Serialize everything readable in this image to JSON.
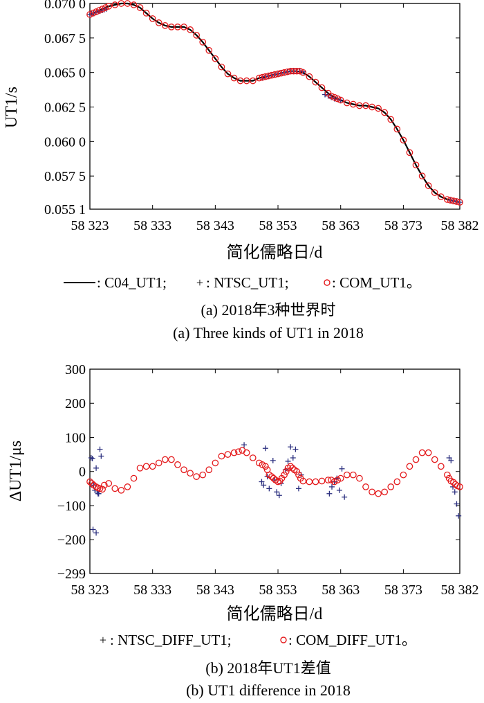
{
  "chart_data": [
    {
      "type": "line",
      "xlabel": "简化儒略日/d",
      "ylabel": "UT1/s",
      "xlim": [
        58323,
        58382
      ],
      "ylim": [
        0.0551,
        0.07
      ],
      "xticks": [
        58323,
        58333,
        58343,
        58353,
        58363,
        58373,
        58382
      ],
      "xtick_labels": [
        "58 323",
        "58 333",
        "58 343",
        "58 353",
        "58 363",
        "58 373",
        "58 382"
      ],
      "yticks": [
        0.0551,
        0.0575,
        0.06,
        0.0625,
        0.065,
        0.0675,
        0.07
      ],
      "ytick_labels": [
        "0.055 1",
        "0.057 5",
        "0.060 0",
        "0.062 5",
        "0.065 0",
        "0.067 5",
        "0.070 0"
      ],
      "legend_text": ": C04_UT1; ",
      "legend_text2": ": NTSC_UT1; ",
      "legend_text3": ": COM_UT1。",
      "caption_cn": "(a) 2018年3种世界时",
      "caption_en": "(a) Three kinds of UT1 in 2018",
      "series": [
        {
          "name": "C04_UT1",
          "style": "line",
          "color": "#000000",
          "x": [
            58323,
            58324,
            58325,
            58326,
            58327,
            58328,
            58329,
            58330,
            58331,
            58332,
            58333,
            58334,
            58335,
            58336,
            58337,
            58338,
            58339,
            58340,
            58341,
            58342,
            58343,
            58344,
            58345,
            58346,
            58347,
            58348,
            58349,
            58350,
            58351,
            58352,
            58353,
            58354,
            58355,
            58356,
            58357,
            58358,
            58359,
            58360,
            58361,
            58362,
            58363,
            58364,
            58365,
            58366,
            58367,
            58368,
            58369,
            58370,
            58371,
            58372,
            58373,
            58374,
            58375,
            58376,
            58377,
            58378,
            58379,
            58380,
            58381,
            58382
          ],
          "y": [
            0.0692,
            0.0694,
            0.0696,
            0.0698,
            0.0699,
            0.07,
            0.07,
            0.0699,
            0.0697,
            0.0693,
            0.0689,
            0.0686,
            0.0684,
            0.0683,
            0.0683,
            0.0683,
            0.0681,
            0.0677,
            0.0672,
            0.0666,
            0.066,
            0.0654,
            0.0649,
            0.0646,
            0.0644,
            0.0644,
            0.0644,
            0.0646,
            0.0647,
            0.0648,
            0.0649,
            0.065,
            0.0651,
            0.0651,
            0.065,
            0.0647,
            0.0643,
            0.0639,
            0.0635,
            0.0632,
            0.063,
            0.0628,
            0.0627,
            0.0626,
            0.0626,
            0.0625,
            0.0624,
            0.0621,
            0.0616,
            0.0609,
            0.0601,
            0.0592,
            0.0583,
            0.0575,
            0.0568,
            0.0563,
            0.056,
            0.0558,
            0.0557,
            0.0556
          ]
        },
        {
          "name": "NTSC_UT1",
          "style": "plus",
          "color": "#2b2f7f",
          "x": [
            58323,
            58323.3,
            58323.6,
            58324,
            58324.3,
            58324.6,
            58325,
            58325.3,
            58325.6,
            58350.5,
            58351,
            58351.5,
            58352,
            58352.5,
            58353,
            58353.5,
            58354,
            58354.5,
            58355,
            58355.5,
            58356,
            58356.5,
            58357,
            58360.5,
            58361,
            58361.5,
            58362,
            58362.5,
            58363,
            58380.5,
            58381,
            58381.5,
            58382
          ],
          "y": [
            0.0692,
            0.06925,
            0.0693,
            0.06935,
            0.0694,
            0.06945,
            0.0695,
            0.06955,
            0.0696,
            0.0646,
            0.0647,
            0.06475,
            0.0648,
            0.06485,
            0.0649,
            0.06495,
            0.065,
            0.06505,
            0.0651,
            0.0651,
            0.0651,
            0.0651,
            0.06505,
            0.0634,
            0.0633,
            0.0632,
            0.0631,
            0.06305,
            0.063,
            0.05575,
            0.0557,
            0.05565,
            0.0556
          ]
        },
        {
          "name": "COM_UT1",
          "style": "circle",
          "color": "#e41a1c",
          "x": [
            58323,
            58323.5,
            58324,
            58324.5,
            58325,
            58325.5,
            58326,
            58327,
            58328,
            58329,
            58330,
            58331,
            58332,
            58333,
            58334,
            58335,
            58336,
            58337,
            58338,
            58339,
            58340,
            58341,
            58342,
            58343,
            58344,
            58345,
            58346,
            58347,
            58348,
            58349,
            58350,
            58350.5,
            58351,
            58351.5,
            58352,
            58352.5,
            58353,
            58353.5,
            58354,
            58354.5,
            58355,
            58355.5,
            58356,
            58356.5,
            58357,
            58358,
            58359,
            58360,
            58361,
            58361.5,
            58362,
            58362.5,
            58363,
            58364,
            58365,
            58366,
            58367,
            58368,
            58369,
            58370,
            58371,
            58372,
            58373,
            58374,
            58375,
            58376,
            58377,
            58378,
            58379,
            58380,
            58380.5,
            58381,
            58381.5,
            58382
          ],
          "y": [
            0.0692,
            0.0693,
            0.0694,
            0.0695,
            0.0696,
            0.0697,
            0.0698,
            0.0699,
            0.07,
            0.07,
            0.0699,
            0.0697,
            0.0693,
            0.0689,
            0.0686,
            0.0684,
            0.0683,
            0.0683,
            0.0683,
            0.0681,
            0.0677,
            0.0672,
            0.0666,
            0.066,
            0.0654,
            0.0649,
            0.0646,
            0.0644,
            0.0644,
            0.0644,
            0.0646,
            0.06465,
            0.0647,
            0.06475,
            0.0648,
            0.06485,
            0.0649,
            0.06495,
            0.065,
            0.06505,
            0.0651,
            0.0651,
            0.0651,
            0.0651,
            0.065,
            0.0647,
            0.0643,
            0.0639,
            0.0635,
            0.0633,
            0.0632,
            0.0631,
            0.063,
            0.0628,
            0.0627,
            0.0626,
            0.0626,
            0.0625,
            0.0624,
            0.0621,
            0.0616,
            0.0609,
            0.0601,
            0.0592,
            0.0583,
            0.0575,
            0.0568,
            0.0563,
            0.056,
            0.0558,
            0.05575,
            0.0557,
            0.05565,
            0.0556
          ]
        }
      ]
    },
    {
      "type": "scatter",
      "xlabel": "简化儒略日/d",
      "ylabel": "ΔUT1/μs",
      "xlim": [
        58323,
        58382
      ],
      "ylim": [
        -299,
        300
      ],
      "xticks": [
        58323,
        58333,
        58343,
        58353,
        58363,
        58373,
        58382
      ],
      "xtick_labels": [
        "58 323",
        "58 333",
        "58 343",
        "58 353",
        "58 363",
        "58 373",
        "58 382"
      ],
      "yticks": [
        -299,
        -200,
        -100,
        0,
        100,
        200,
        300
      ],
      "ytick_labels": [
        "−299",
        "−200",
        "−100",
        "0",
        "100",
        "200",
        "300"
      ],
      "legend_text": ": NTSC_DIFF_UT1; ",
      "legend_text2": ": COM_DIFF_UT1。",
      "caption_cn": "(b) 2018年UT1差值",
      "caption_en": "(b) UT1 difference in 2018",
      "series": [
        {
          "name": "NTSC_DIFF_UT1",
          "style": "plus",
          "color": "#2b2f7f",
          "x": [
            58323.2,
            58323.4,
            58323.6,
            58323.8,
            58324,
            58324.2,
            58324.4,
            58324.6,
            58324.8,
            58323.5,
            58324,
            58324.3,
            58347.6,
            58350.4,
            58350.7,
            58351,
            58351.3,
            58351.6,
            58352.2,
            58352.5,
            58352.8,
            58353.2,
            58353.5,
            58354.2,
            58354.6,
            58355,
            58355.4,
            58355.8,
            58356.3,
            58356.7,
            58361.2,
            58361.6,
            58362,
            58362.4,
            58362.8,
            58363.2,
            58363.6,
            58380.3,
            58380.6,
            58380.9,
            58381.2,
            58381.5,
            58381.8
          ],
          "y": [
            40,
            38,
            -40,
            -55,
            10,
            -60,
            -65,
            65,
            45,
            -170,
            -180,
            -65,
            78,
            -30,
            -40,
            68,
            -15,
            -50,
            32,
            -25,
            -60,
            -70,
            -35,
            5,
            30,
            72,
            40,
            65,
            -50,
            -10,
            -65,
            -45,
            -30,
            -20,
            -55,
            8,
            -75,
            40,
            32,
            -45,
            -60,
            -95,
            -130
          ]
        },
        {
          "name": "COM_DIFF_UT1",
          "style": "circle",
          "color": "#e41a1c",
          "x": [
            58323,
            58323.3,
            58323.6,
            58324,
            58324.3,
            58324.6,
            58325,
            58325.3,
            58326,
            58327,
            58328,
            58329,
            58330,
            58331,
            58332,
            58333,
            58334,
            58335,
            58336,
            58337,
            58338,
            58339,
            58340,
            58341,
            58342,
            58343,
            58344,
            58345,
            58346,
            58346.7,
            58347.3,
            58348,
            58349,
            58350,
            58350.5,
            58351,
            58351.3,
            58351.6,
            58352,
            58352.3,
            58352.6,
            58353,
            58353.3,
            58353.6,
            58354,
            58354.3,
            58354.6,
            58355,
            58355.3,
            58355.6,
            58356,
            58356.3,
            58356.6,
            58357,
            58358,
            58359,
            58360,
            58361,
            58361.5,
            58362,
            58362.5,
            58363,
            58364,
            58365,
            58366,
            58367,
            58368,
            58369,
            58370,
            58371,
            58372,
            58373,
            58374,
            58375,
            58376,
            58377,
            58378,
            58379,
            58380,
            58380.3,
            58380.6,
            58381,
            58381.3,
            58381.6,
            58382
          ],
          "y": [
            -30,
            -35,
            -40,
            -45,
            -48,
            -50,
            -52,
            -40,
            -35,
            -50,
            -55,
            -45,
            -20,
            10,
            15,
            15,
            25,
            35,
            35,
            20,
            5,
            -5,
            -15,
            -10,
            5,
            25,
            45,
            50,
            55,
            58,
            62,
            55,
            40,
            25,
            20,
            15,
            5,
            -10,
            -15,
            -20,
            -25,
            -30,
            -28,
            -20,
            -10,
            0,
            10,
            15,
            10,
            5,
            0,
            -10,
            -20,
            -28,
            -30,
            -30,
            -28,
            -25,
            -25,
            -30,
            -25,
            -20,
            -10,
            -10,
            -20,
            -45,
            -60,
            -65,
            -60,
            -45,
            -30,
            -10,
            15,
            35,
            55,
            55,
            35,
            15,
            -10,
            -20,
            -28,
            -32,
            -38,
            -42,
            -45
          ]
        }
      ]
    }
  ]
}
